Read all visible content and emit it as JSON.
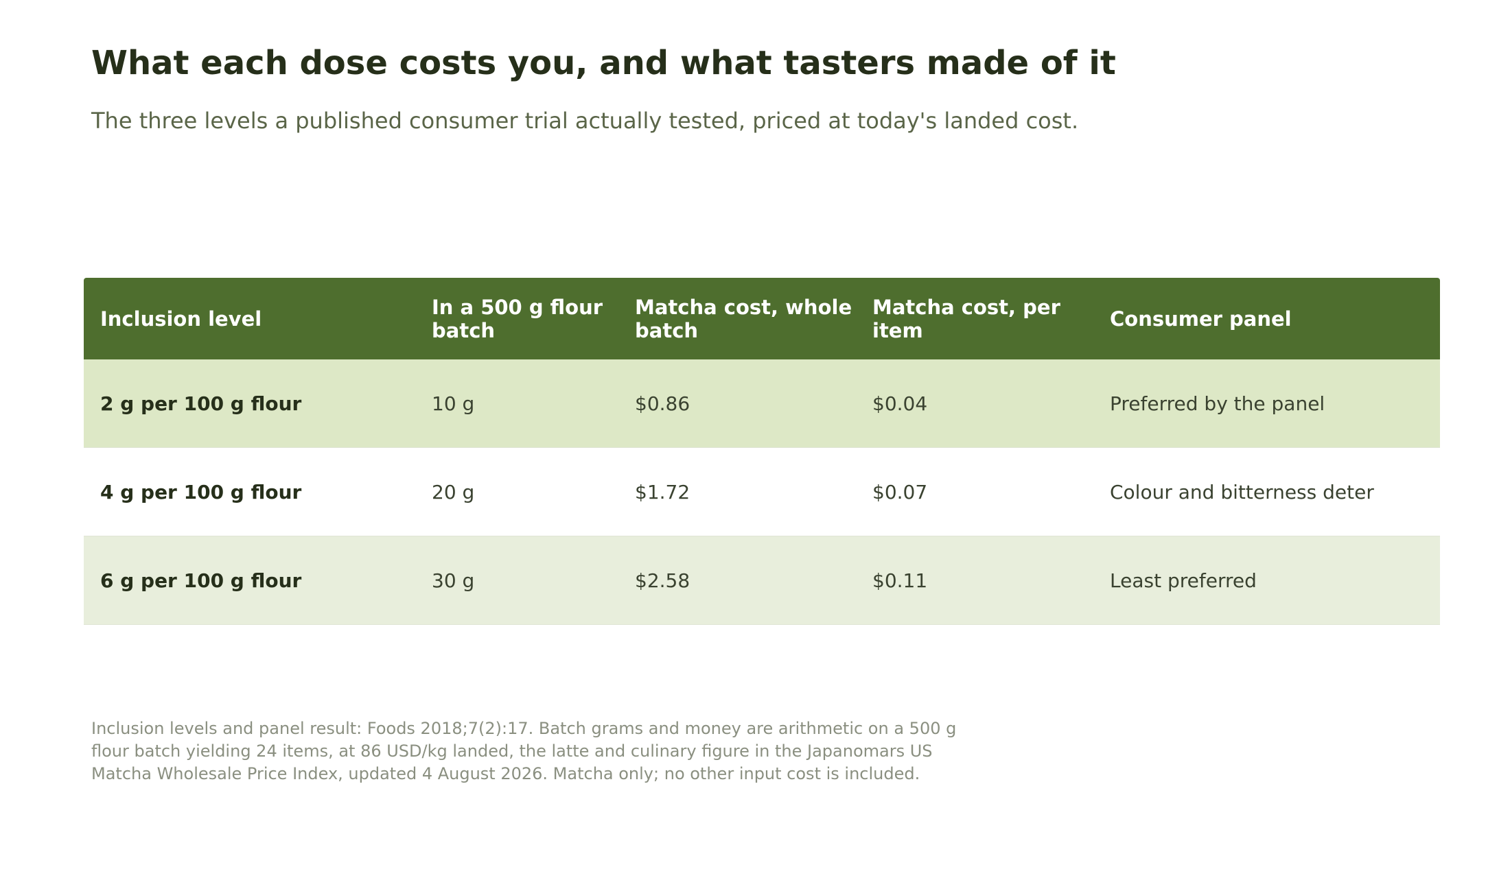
{
  "title": "What each dose costs you, and what tasters made of it",
  "subtitle": "The three levels a published consumer trial actually tested, priced at today's landed cost.",
  "table": {
    "headers": [
      "Inclusion level",
      "In a 500 g flour batch",
      "Matcha cost, whole batch",
      "Matcha cost, per item",
      "Consumer panel"
    ],
    "rows": [
      {
        "level": "2 g per 100 g flour",
        "batch": "10 g",
        "whole": "$0.86",
        "per_item": "$0.04",
        "panel": "Preferred by the panel"
      },
      {
        "level": "4 g per 100 g flour",
        "batch": "20 g",
        "whole": "$1.72",
        "per_item": "$0.07",
        "panel": "Colour and bitterness deter"
      },
      {
        "level": "6 g per 100 g flour",
        "batch": "30 g",
        "whole": "$2.58",
        "per_item": "$0.11",
        "panel": "Least preferred"
      }
    ]
  },
  "footnote": "Inclusion levels and panel result: Foods 2018;7(2):17. Batch grams and money are arithmetic on a 500 g flour batch yielding 24 items, at 86 USD/kg landed, the latte and culinary figure in the Japanomars US Matcha Wholesale Price Index, updated 4 August 2026. Matcha only; no other input cost is included.",
  "colors": {
    "header_bg": "#4e6e2e",
    "row_1_bg": "#dde8c6",
    "row_2_bg": "#ffffff",
    "row_3_bg": "#e8eedc"
  }
}
